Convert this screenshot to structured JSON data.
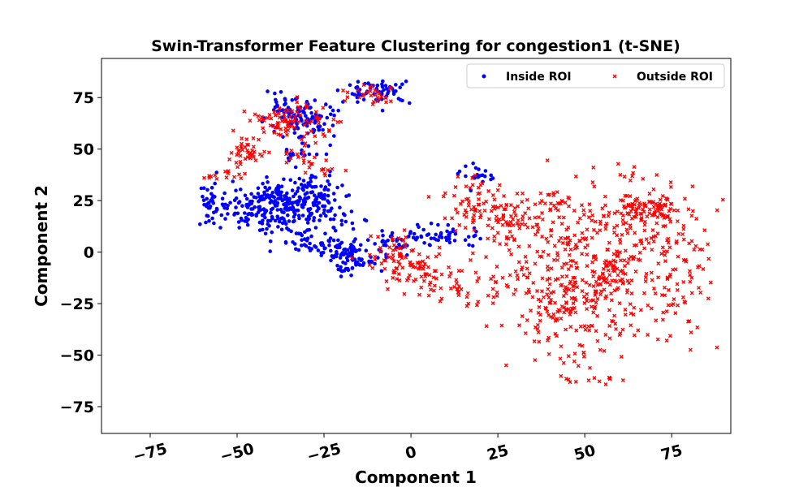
{
  "chart_data": {
    "type": "scatter",
    "title": "Swin-Transformer Feature Clustering for congestion1 (t-SNE)",
    "xlabel": "Component 1",
    "ylabel": "Component 2",
    "xlim": [
      -89,
      92
    ],
    "ylim": [
      -88,
      94
    ],
    "xticks": [
      -75,
      -50,
      -25,
      0,
      25,
      50,
      75
    ],
    "yticks": [
      -75,
      -50,
      -25,
      0,
      25,
      50,
      75
    ],
    "xtick_labels": [
      "−75",
      "−50",
      "−25",
      "0",
      "25",
      "50",
      "75"
    ],
    "ytick_labels": [
      "−75",
      "−50",
      "−25",
      "0",
      "25",
      "50",
      "75"
    ],
    "legend_position": "top-right",
    "series": [
      {
        "name": "Inside ROI",
        "color": "#0000ff",
        "marker": "circle",
        "clusters": [
          {
            "cx": -58,
            "cy": 22,
            "rx": 3,
            "ry": 8,
            "n": 30
          },
          {
            "cx": -48,
            "cy": 20,
            "rx": 7,
            "ry": 7,
            "n": 70
          },
          {
            "cx": -36,
            "cy": 24,
            "rx": 8,
            "ry": 9,
            "n": 180
          },
          {
            "cx": -28,
            "cy": 26,
            "rx": 6,
            "ry": 8,
            "n": 70
          },
          {
            "cx": -30,
            "cy": 5,
            "rx": 6,
            "ry": 5,
            "n": 40
          },
          {
            "cx": -20,
            "cy": 0,
            "rx": 6,
            "ry": 5,
            "n": 70
          },
          {
            "cx": -15,
            "cy": -5,
            "rx": 6,
            "ry": 4,
            "n": 35
          },
          {
            "cx": -22,
            "cy": 15,
            "rx": 5,
            "ry": 5,
            "n": 20
          },
          {
            "cx": -3,
            "cy": 6,
            "rx": 5,
            "ry": 4,
            "n": 30
          },
          {
            "cx": 10,
            "cy": 8,
            "rx": 8,
            "ry": 4,
            "n": 45
          },
          {
            "cx": 20,
            "cy": 37,
            "rx": 4,
            "ry": 4,
            "n": 20
          },
          {
            "cx": -35,
            "cy": 66,
            "rx": 6,
            "ry": 6,
            "n": 70
          },
          {
            "cx": -28,
            "cy": 62,
            "rx": 5,
            "ry": 8,
            "n": 50
          },
          {
            "cx": -15,
            "cy": 78,
            "rx": 4,
            "ry": 3,
            "n": 20
          },
          {
            "cx": -7,
            "cy": 78,
            "rx": 5,
            "ry": 4,
            "n": 40
          },
          {
            "cx": -33,
            "cy": 47,
            "rx": 4,
            "ry": 2,
            "n": 15
          }
        ]
      },
      {
        "name": "Outside ROI",
        "color": "#ff0000",
        "marker": "x",
        "clusters": [
          {
            "cx": 55,
            "cy": -5,
            "rx": 20,
            "ry": 25,
            "n": 380
          },
          {
            "cx": 45,
            "cy": -30,
            "rx": 12,
            "ry": 18,
            "n": 120
          },
          {
            "cx": 68,
            "cy": 20,
            "rx": 8,
            "ry": 6,
            "n": 100
          },
          {
            "cx": 78,
            "cy": -10,
            "rx": 6,
            "ry": 25,
            "n": 50
          },
          {
            "cx": 30,
            "cy": 15,
            "rx": 10,
            "ry": 8,
            "n": 80
          },
          {
            "cx": 18,
            "cy": 25,
            "rx": 6,
            "ry": 10,
            "n": 50
          },
          {
            "cx": 15,
            "cy": -15,
            "rx": 10,
            "ry": 8,
            "n": 50
          },
          {
            "cx": 0,
            "cy": -8,
            "rx": 8,
            "ry": 6,
            "n": 70
          },
          {
            "cx": -5,
            "cy": 2,
            "rx": 5,
            "ry": 5,
            "n": 25
          },
          {
            "cx": -47,
            "cy": 48,
            "rx": 5,
            "ry": 4,
            "n": 40
          },
          {
            "cx": -55,
            "cy": 38,
            "rx": 5,
            "ry": 2,
            "n": 15
          },
          {
            "cx": -38,
            "cy": 63,
            "rx": 6,
            "ry": 6,
            "n": 70
          },
          {
            "cx": -28,
            "cy": 62,
            "rx": 6,
            "ry": 8,
            "n": 30
          },
          {
            "cx": -10,
            "cy": 77,
            "rx": 5,
            "ry": 4,
            "n": 30
          },
          {
            "cx": -32,
            "cy": 47,
            "rx": 4,
            "ry": 3,
            "n": 15
          },
          {
            "cx": -26,
            "cy": 40,
            "rx": 5,
            "ry": 2,
            "n": 10
          },
          {
            "cx": 50,
            "cy": -62,
            "rx": 6,
            "ry": 3,
            "n": 12
          },
          {
            "cx": 62,
            "cy": 38,
            "rx": 5,
            "ry": 3,
            "n": 8
          },
          {
            "cx": 40,
            "cy": 25,
            "rx": 5,
            "ry": 4,
            "n": 20
          }
        ]
      }
    ]
  }
}
